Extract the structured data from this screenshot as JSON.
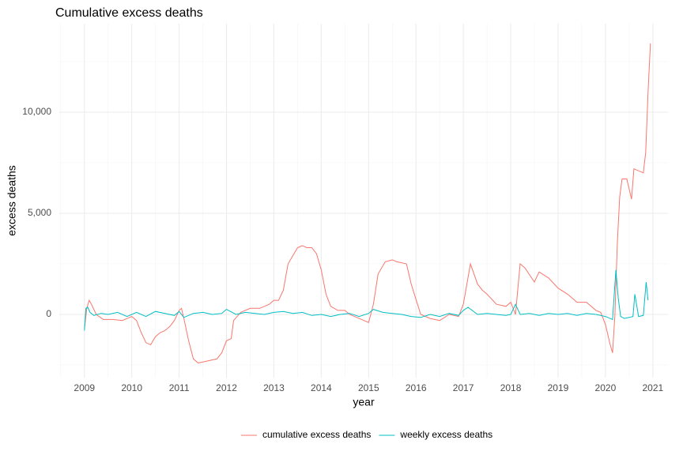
{
  "chart_data": {
    "type": "line",
    "title": "Cumulative excess deaths",
    "x_label": "year",
    "y_label": "excess deaths",
    "xlim": [
      2008.47,
      2021.32
    ],
    "ylim": [
      -3125,
      14375
    ],
    "xticks": [
      2009,
      2010,
      2011,
      2012,
      2013,
      2014,
      2015,
      2016,
      2017,
      2018,
      2019,
      2020,
      2021
    ],
    "yticks": [
      0,
      {
        "value": 5000,
        "label": "5,000"
      },
      {
        "value": 10000,
        "label": "10,000"
      }
    ],
    "grid": true,
    "legend": "bottom",
    "series": [
      {
        "name": "cumulative excess deaths",
        "color": "#F8766D",
        "x": [
          2009.0,
          2009.05,
          2009.1,
          2009.15,
          2009.25,
          2009.4,
          2009.6,
          2009.8,
          2010.0,
          2010.1,
          2010.2,
          2010.3,
          2010.4,
          2010.5,
          2010.6,
          2010.7,
          2010.8,
          2010.9,
          2011.0,
          2011.05,
          2011.1,
          2011.2,
          2011.3,
          2011.4,
          2011.5,
          2011.6,
          2011.8,
          2011.9,
          2012.0,
          2012.1,
          2012.15,
          2012.3,
          2012.5,
          2012.7,
          2012.9,
          2013.0,
          2013.1,
          2013.2,
          2013.3,
          2013.5,
          2013.6,
          2013.7,
          2013.8,
          2013.9,
          2014.0,
          2014.1,
          2014.2,
          2014.35,
          2014.5,
          2014.6,
          2014.8,
          2015.0,
          2015.1,
          2015.2,
          2015.35,
          2015.5,
          2015.6,
          2015.8,
          2015.9,
          2016.1,
          2016.3,
          2016.5,
          2016.7,
          2016.9,
          2017.0,
          2017.15,
          2017.3,
          2017.4,
          2017.5,
          2017.7,
          2017.9,
          2018.0,
          2018.1,
          2018.2,
          2018.3,
          2018.5,
          2018.6,
          2018.8,
          2019.0,
          2019.2,
          2019.4,
          2019.6,
          2019.8,
          2019.9,
          2020.0,
          2020.1,
          2020.15,
          2020.2,
          2020.25,
          2020.3,
          2020.35,
          2020.45,
          2020.55,
          2020.6,
          2020.7,
          2020.8,
          2020.85,
          2020.9,
          2020.95
        ],
        "values": [
          -700,
          300,
          700,
          500,
          0,
          -250,
          -250,
          -300,
          -100,
          -300,
          -900,
          -1400,
          -1500,
          -1100,
          -900,
          -800,
          -600,
          -300,
          200,
          300,
          -200,
          -1300,
          -2200,
          -2400,
          -2350,
          -2300,
          -2200,
          -1900,
          -1300,
          -1200,
          -300,
          100,
          300,
          300,
          500,
          700,
          700,
          1200,
          2500,
          3300,
          3400,
          3300,
          3300,
          3000,
          2200,
          1000,
          400,
          200,
          200,
          0,
          -200,
          -400,
          500,
          2000,
          2600,
          2700,
          2600,
          2500,
          1500,
          0,
          -200,
          -300,
          0,
          -100,
          500,
          2500,
          1500,
          1200,
          1000,
          500,
          400,
          600,
          0,
          2500,
          2300,
          1600,
          2100,
          1800,
          1300,
          1000,
          600,
          600,
          200,
          100,
          -500,
          -1500,
          -1900,
          0,
          3500,
          5800,
          6700,
          6700,
          5700,
          7200,
          7100,
          7000,
          8000,
          11000,
          13400
        ]
      },
      {
        "name": "weekly excess deaths",
        "color": "#00BFC4",
        "x": [
          2009.0,
          2009.03,
          2009.07,
          2009.12,
          2009.2,
          2009.35,
          2009.5,
          2009.7,
          2009.9,
          2010.1,
          2010.3,
          2010.5,
          2010.7,
          2010.9,
          2011.0,
          2011.1,
          2011.3,
          2011.5,
          2011.7,
          2011.9,
          2012.0,
          2012.2,
          2012.4,
          2012.6,
          2012.8,
          2013.0,
          2013.2,
          2013.4,
          2013.6,
          2013.8,
          2014.0,
          2014.2,
          2014.4,
          2014.6,
          2014.8,
          2015.0,
          2015.1,
          2015.3,
          2015.5,
          2015.7,
          2015.9,
          2016.1,
          2016.3,
          2016.5,
          2016.7,
          2016.9,
          2017.0,
          2017.1,
          2017.3,
          2017.5,
          2017.7,
          2017.9,
          2018.0,
          2018.1,
          2018.2,
          2018.4,
          2018.6,
          2018.8,
          2019.0,
          2019.2,
          2019.4,
          2019.6,
          2019.8,
          2020.0,
          2020.15,
          2020.22,
          2020.27,
          2020.32,
          2020.4,
          2020.5,
          2020.58,
          2020.62,
          2020.7,
          2020.8,
          2020.86,
          2020.9
        ],
        "values": [
          -800,
          300,
          350,
          100,
          -50,
          50,
          0,
          100,
          -100,
          100,
          -100,
          150,
          50,
          -50,
          150,
          -150,
          50,
          100,
          0,
          50,
          250,
          0,
          100,
          50,
          0,
          100,
          150,
          50,
          100,
          -50,
          0,
          -100,
          0,
          50,
          -100,
          50,
          250,
          100,
          50,
          0,
          -100,
          -150,
          0,
          -100,
          50,
          -50,
          200,
          350,
          0,
          50,
          0,
          -50,
          0,
          500,
          0,
          50,
          -50,
          50,
          0,
          50,
          -50,
          50,
          0,
          -100,
          -250,
          2200,
          800,
          -100,
          -200,
          -150,
          -100,
          1000,
          -100,
          -50,
          1600,
          700
        ]
      }
    ]
  }
}
